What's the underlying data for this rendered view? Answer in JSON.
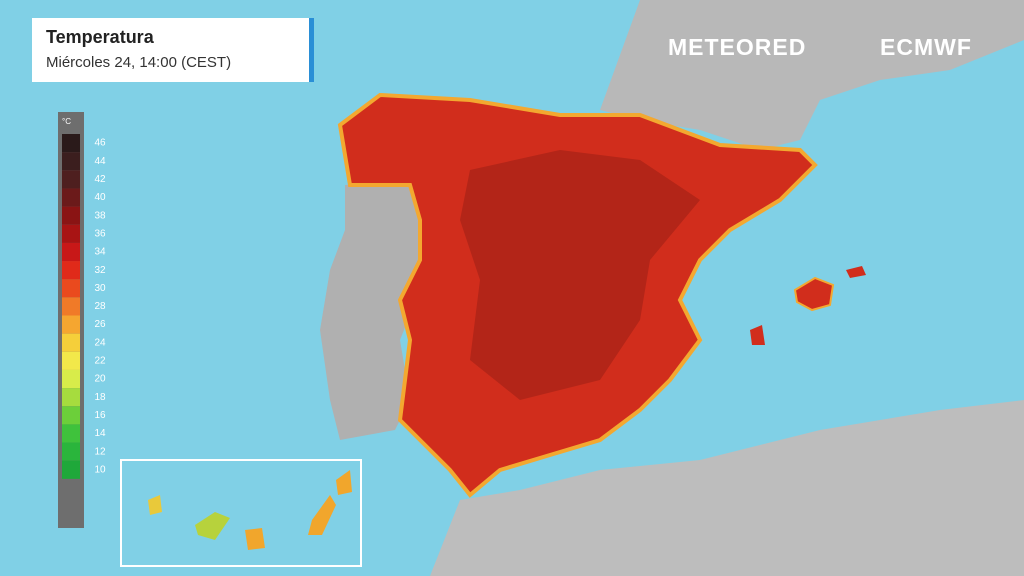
{
  "header": {
    "title": "Temperatura",
    "subtitle": "Miércoles 24, 14:00 (CEST)"
  },
  "brand": {
    "meteored": "METEORED",
    "ecmwf": "ECMWF"
  },
  "legend": {
    "unit": "°C",
    "ticks": [
      46,
      44,
      42,
      40,
      38,
      36,
      34,
      32,
      30,
      28,
      26,
      24,
      22,
      20,
      18,
      16,
      14,
      12,
      10
    ],
    "colors": [
      "#2a1a1a",
      "#3b1e1e",
      "#4e1f1f",
      "#6b1a1a",
      "#8a1414",
      "#a81414",
      "#c81818",
      "#e02a1a",
      "#ea4a1e",
      "#f07a28",
      "#f5a630",
      "#f5cf3a",
      "#f2e84a",
      "#d8ec4a",
      "#a6dc3e",
      "#6ccf3a",
      "#3fc23c",
      "#2ab53c",
      "#1fa83a"
    ]
  }
}
